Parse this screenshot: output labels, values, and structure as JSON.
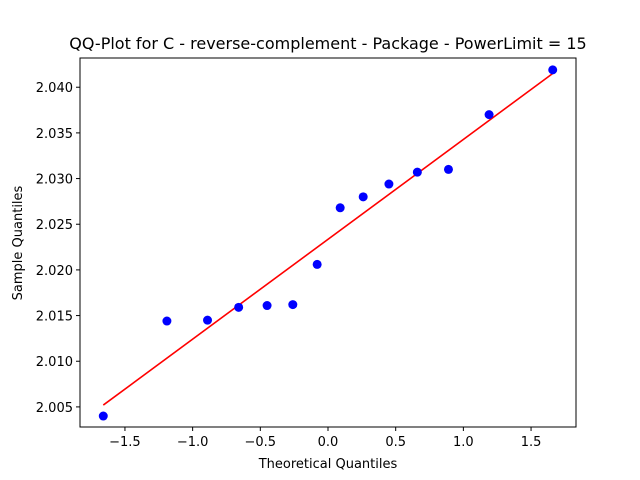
{
  "chart_data": {
    "type": "scatter",
    "title": "QQ-Plot for C - reverse-complement - Package - PowerLimit = 15",
    "xlabel": "Theoretical Quantiles",
    "ylabel": "Sample Quantiles",
    "xlim": [
      -1.832,
      1.832
    ],
    "ylim": [
      2.0028,
      2.0432
    ],
    "xticks": [
      -1.5,
      -1.0,
      -0.5,
      0.0,
      0.5,
      1.0,
      1.5
    ],
    "xtick_labels": [
      "−1.5",
      "−1.0",
      "−0.5",
      "0.0",
      "0.5",
      "1.0",
      "1.5"
    ],
    "yticks": [
      2.005,
      2.01,
      2.015,
      2.02,
      2.025,
      2.03,
      2.035,
      2.04
    ],
    "ytick_labels": [
      "2.005",
      "2.010",
      "2.015",
      "2.020",
      "2.025",
      "2.030",
      "2.035",
      "2.040"
    ],
    "grid": false,
    "series": [
      {
        "kind": "points",
        "color": "#0000ff",
        "points": [
          [
            -1.66,
            2.004
          ],
          [
            -1.19,
            2.0144
          ],
          [
            -0.89,
            2.0145
          ],
          [
            -0.66,
            2.0159
          ],
          [
            -0.45,
            2.0161
          ],
          [
            -0.26,
            2.0162
          ],
          [
            -0.08,
            2.0206
          ],
          [
            0.09,
            2.0268
          ],
          [
            0.26,
            2.028
          ],
          [
            0.45,
            2.0294
          ],
          [
            0.66,
            2.0307
          ],
          [
            0.89,
            2.031
          ],
          [
            1.19,
            2.037
          ],
          [
            1.66,
            2.0419
          ]
        ]
      },
      {
        "kind": "reference_line",
        "color": "#ff0000",
        "points": [
          [
            -1.66,
            2.0052
          ],
          [
            1.66,
            2.0415
          ]
        ]
      }
    ]
  }
}
